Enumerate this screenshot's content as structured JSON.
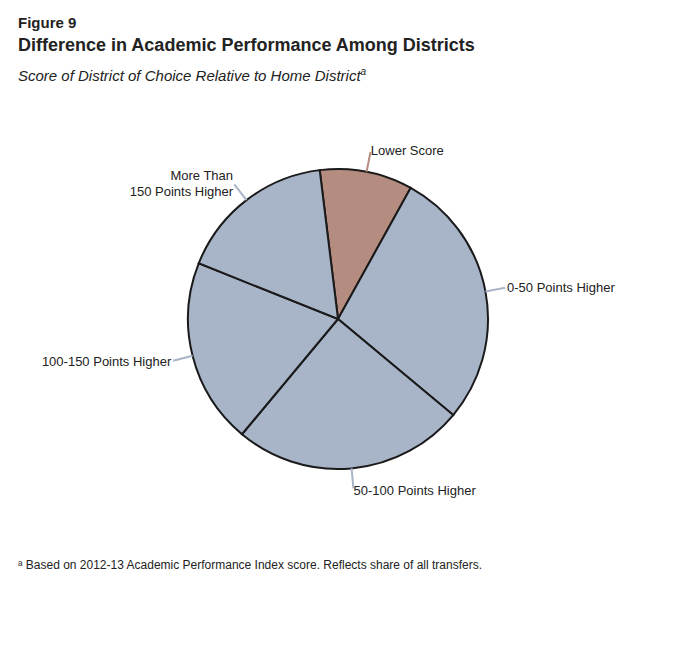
{
  "chart_data": {
    "type": "pie",
    "figure_label": "Figure 9",
    "title": "Difference in Academic Performance Among Districts",
    "subtitle": "Score of District of Choice Relative to Home District",
    "subtitle_marker": "a",
    "footnote": "ᵃ Based on 2012-13 Academic Performance Index score. Reflects share of all transfers.",
    "categories": [
      "Lower Score",
      "0-50 Points Higher",
      "50-100 Points Higher",
      "100-150 Points Higher",
      "More Than\n150 Points Higher"
    ],
    "values": [
      10,
      28,
      25,
      20,
      17
    ],
    "colors": [
      "#b58c80",
      "#a8b5c8",
      "#a8b5c8",
      "#a8b5c8",
      "#a8b5c8"
    ]
  }
}
